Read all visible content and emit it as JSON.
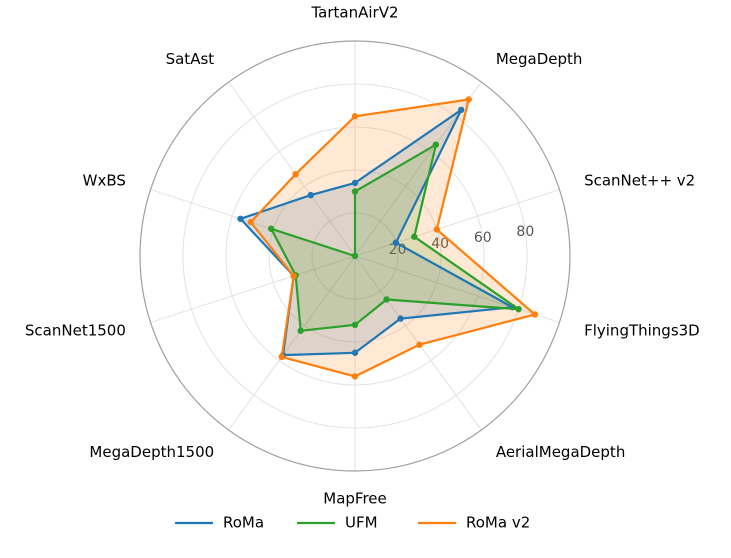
{
  "chart_data": {
    "type": "radar",
    "categories": [
      "TartanAirV2",
      "MegaDepth",
      "ScanNet++ v2",
      "FlyingThings3D",
      "AerialMegaDepth",
      "MapFree",
      "MegaDepth1500",
      "ScanNet1500",
      "WxBS",
      "SatAst"
    ],
    "rlim": [
      0,
      100
    ],
    "rticks": [
      20,
      40,
      60,
      80
    ],
    "series": [
      {
        "name": "RoMa",
        "color": "#1f77b4",
        "values": [
          34,
          84,
          20,
          77,
          36,
          45,
          57,
          30,
          56,
          35
        ]
      },
      {
        "name": "UFM",
        "color": "#2ca02c",
        "values": [
          30,
          64,
          29,
          80,
          25,
          32,
          43,
          29,
          41,
          0
        ]
      },
      {
        "name": "RoMa v2",
        "color": "#ff7f0e",
        "values": [
          65,
          90,
          40,
          88,
          51,
          56,
          58,
          30,
          51,
          47
        ]
      }
    ],
    "legend": "bottom",
    "grid": true
  }
}
